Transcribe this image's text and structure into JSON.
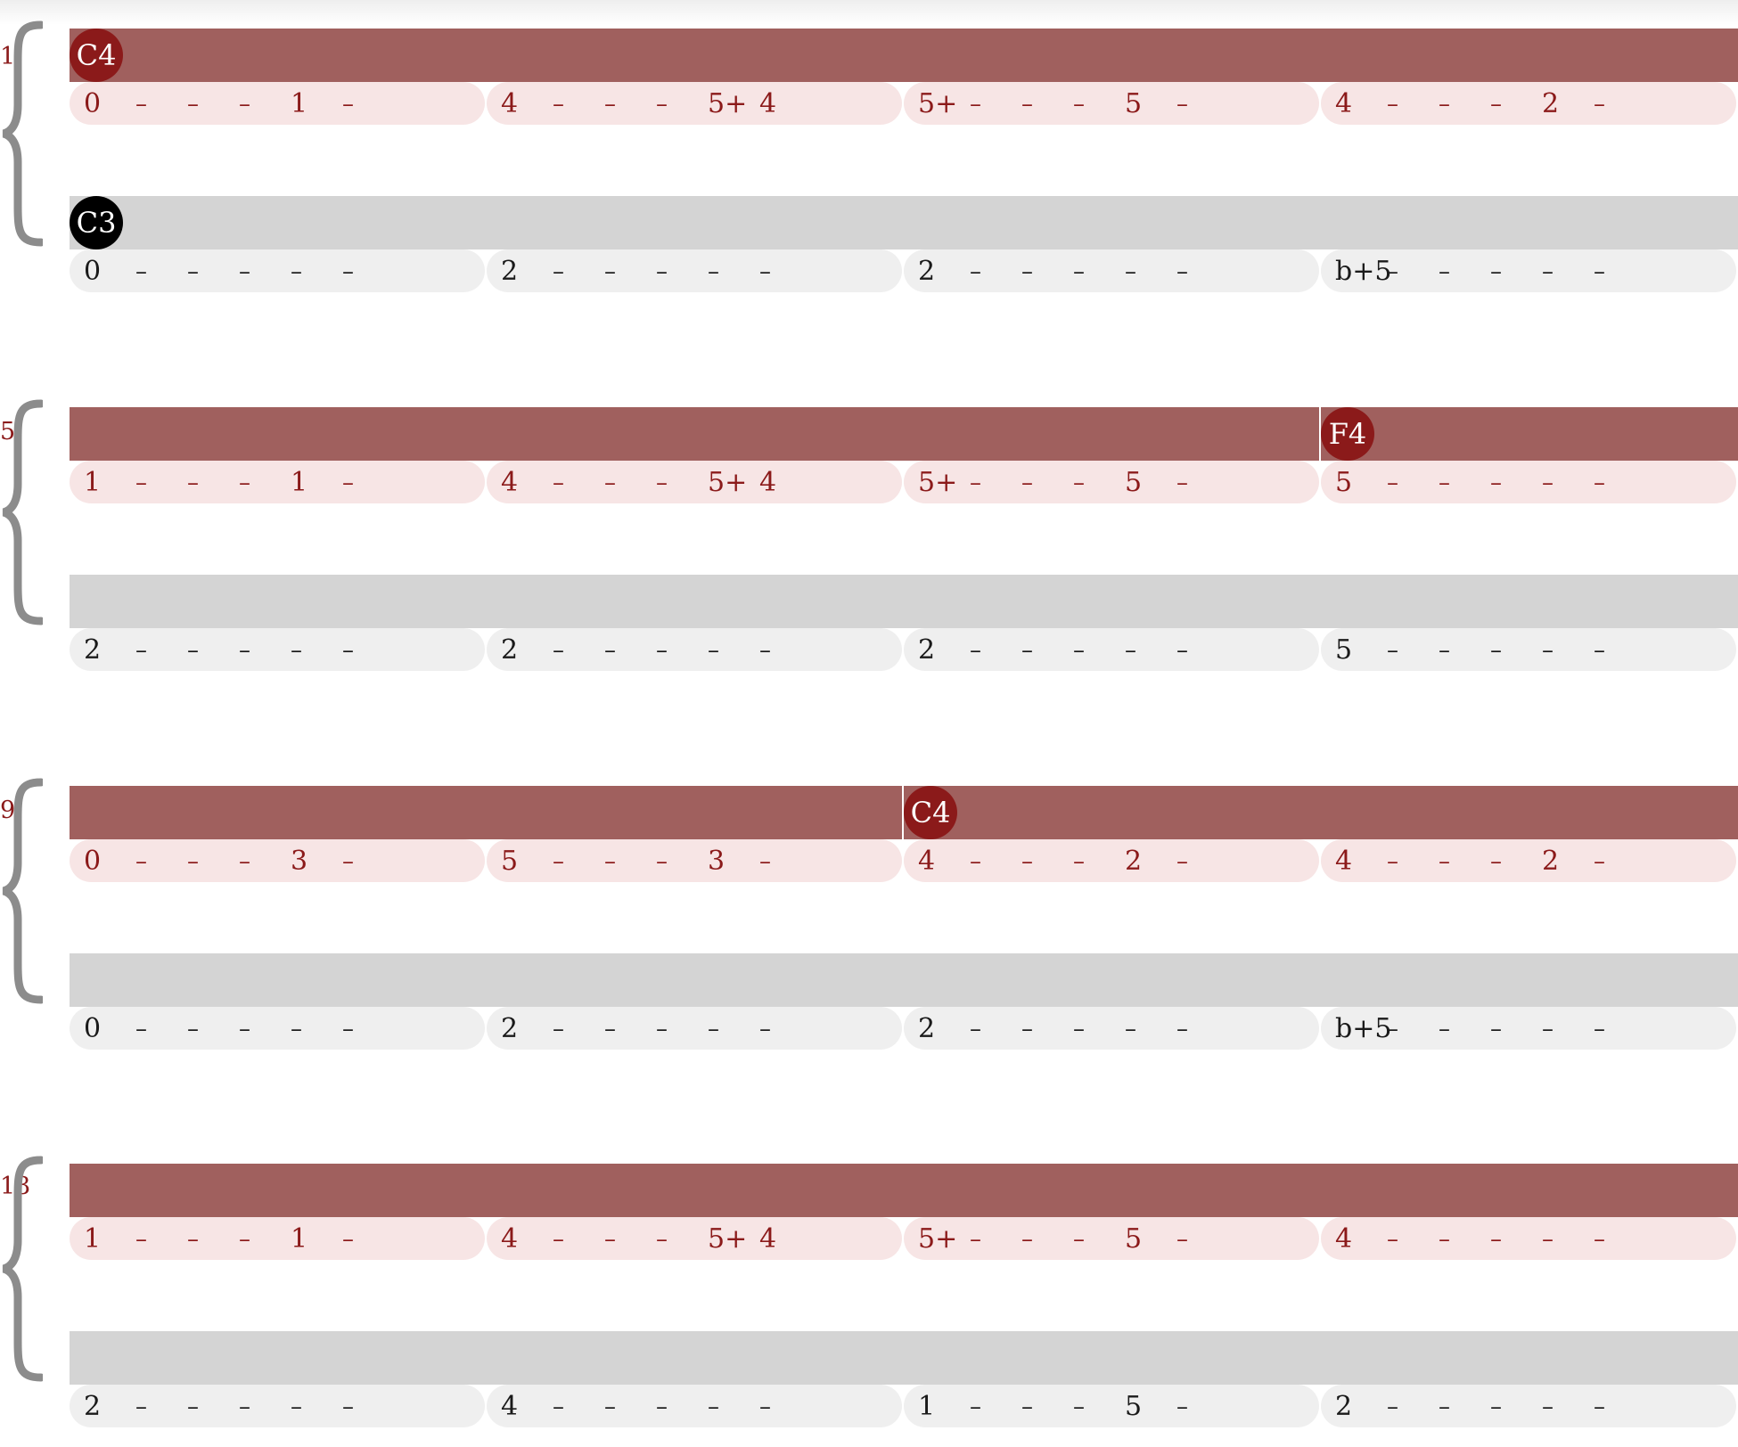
{
  "systems": [
    {
      "measure": "1",
      "top": {
        "markers": [
          {
            "label": "C4",
            "pos": 0,
            "style": "red"
          }
        ],
        "cells": [
          [
            "0",
            "–",
            "–",
            "–",
            "1",
            "–"
          ],
          [
            "4",
            "–",
            "–",
            "–",
            "5+",
            "4"
          ],
          [
            "5+",
            "–",
            "–",
            "–",
            "5",
            "–"
          ],
          [
            "4",
            "–",
            "–",
            "–",
            "2",
            "–"
          ]
        ]
      },
      "bottom": {
        "markers": [
          {
            "label": "C3",
            "pos": 0,
            "style": "black"
          }
        ],
        "cells": [
          [
            "0",
            "–",
            "–",
            "–",
            "–",
            "–"
          ],
          [
            "2",
            "–",
            "–",
            "–",
            "–",
            "–"
          ],
          [
            "2",
            "–",
            "–",
            "–",
            "–",
            "–"
          ],
          [
            "b+5",
            "–",
            "–",
            "–",
            "–",
            "–"
          ]
        ]
      }
    },
    {
      "measure": "5",
      "top": {
        "markers": [
          {
            "label": "F4",
            "pos": 3,
            "style": "red"
          }
        ],
        "cells": [
          [
            "1",
            "–",
            "–",
            "–",
            "1",
            "–"
          ],
          [
            "4",
            "–",
            "–",
            "–",
            "5+",
            "4"
          ],
          [
            "5+",
            "–",
            "–",
            "–",
            "5",
            "–"
          ],
          [
            "5",
            "–",
            "–",
            "–",
            "–",
            "–"
          ]
        ]
      },
      "bottom": {
        "markers": [],
        "cells": [
          [
            "2",
            "–",
            "–",
            "–",
            "–",
            "–"
          ],
          [
            "2",
            "–",
            "–",
            "–",
            "–",
            "–"
          ],
          [
            "2",
            "–",
            "–",
            "–",
            "–",
            "–"
          ],
          [
            "5",
            "–",
            "–",
            "–",
            "–",
            "–"
          ]
        ]
      }
    },
    {
      "measure": "9",
      "top": {
        "markers": [
          {
            "label": "C4",
            "pos": 2,
            "style": "red"
          }
        ],
        "cells": [
          [
            "0",
            "–",
            "–",
            "–",
            "3",
            "–"
          ],
          [
            "5",
            "–",
            "–",
            "–",
            "3",
            "–"
          ],
          [
            "4",
            "–",
            "–",
            "–",
            "2",
            "–"
          ],
          [
            "4",
            "–",
            "–",
            "–",
            "2",
            "–"
          ]
        ]
      },
      "bottom": {
        "markers": [],
        "cells": [
          [
            "0",
            "–",
            "–",
            "–",
            "–",
            "–"
          ],
          [
            "2",
            "–",
            "–",
            "–",
            "–",
            "–"
          ],
          [
            "2",
            "–",
            "–",
            "–",
            "–",
            "–"
          ],
          [
            "b+5",
            "–",
            "–",
            "–",
            "–",
            "–"
          ]
        ]
      }
    },
    {
      "measure": "13",
      "top": {
        "markers": [],
        "cells": [
          [
            "1",
            "–",
            "–",
            "–",
            "1",
            "–"
          ],
          [
            "4",
            "–",
            "–",
            "–",
            "5+",
            "4"
          ],
          [
            "5+",
            "–",
            "–",
            "–",
            "5",
            "–"
          ],
          [
            "4",
            "–",
            "–",
            "–",
            "–",
            "–"
          ]
        ]
      },
      "bottom": {
        "markers": [],
        "cells": [
          [
            "2",
            "–",
            "–",
            "–",
            "–",
            "–"
          ],
          [
            "4",
            "–",
            "–",
            "–",
            "–",
            "–"
          ],
          [
            "1",
            "–",
            "–",
            "–",
            "5",
            "–"
          ],
          [
            "2",
            "–",
            "–",
            "–",
            "–",
            "–"
          ]
        ]
      }
    }
  ]
}
